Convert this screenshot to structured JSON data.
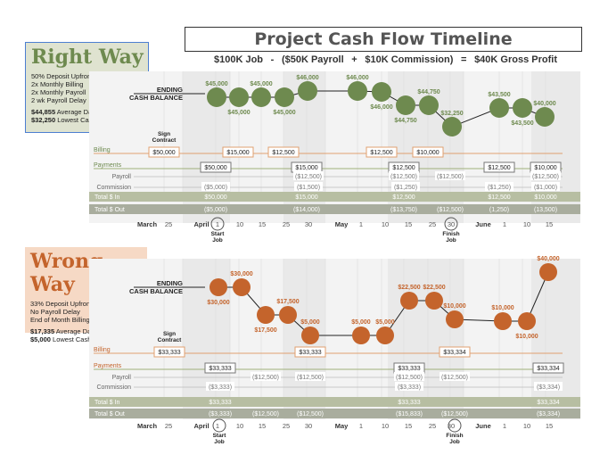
{
  "title": "Project Cash Flow Timeline",
  "subtitle": [
    "$100K Job",
    "-",
    "($50K Payroll",
    "+",
    "$10K Commission)",
    "=",
    "$40K Gross Profit"
  ],
  "colors": {
    "right": "#6e8a4f",
    "wrong": "#c4642c",
    "billing_line": "#e0a070",
    "payments_line": "#9fb07a",
    "band_in": "#b7bea2",
    "band_out": "#a9ad9e"
  },
  "timeline": {
    "month_labels": [
      {
        "text": "March",
        "day": 17
      },
      {
        "text": "25",
        "day": 25
      },
      {
        "text": "April",
        "day": 28
      },
      {
        "text": "1",
        "day": 32
      },
      {
        "text": "10",
        "day": 41
      },
      {
        "text": "15",
        "day": 46
      },
      {
        "text": "25",
        "day": 56
      },
      {
        "text": "30",
        "day": 61
      },
      {
        "text": "May",
        "day": 66
      },
      {
        "text": "1",
        "day": 62
      },
      {
        "text": "10",
        "day": 71
      },
      {
        "text": "15",
        "day": 76
      },
      {
        "text": "25",
        "day": 86
      },
      {
        "text": "30",
        "day": 91
      },
      {
        "text": "June",
        "day": 96
      },
      {
        "text": "1",
        "day": 93
      },
      {
        "text": "10",
        "day": 102
      },
      {
        "text": "15",
        "day": 107
      }
    ],
    "start_label": [
      "Start",
      "Job"
    ],
    "finish_label": [
      "Finish",
      "Job"
    ],
    "sign_label": [
      "Sign",
      "Contract"
    ]
  },
  "chart_data": [
    {
      "type": "line",
      "name": "Right Way",
      "notes": [
        "50% Deposit Upfront",
        "2x Monthly Billing",
        "2x Monthly Payroll",
        "2 wk Payroll Delay"
      ],
      "avg_balance": "$44,855",
      "avg_label": "Average Daily Cash Balance",
      "low_balance": "$32,250",
      "low_label": "Lowest Cash Balance",
      "balance_label": [
        "ENDING",
        "CASH BALANCE"
      ],
      "balance_points": [
        {
          "label": "$45,000",
          "value": 45000,
          "pos": "above"
        },
        {
          "label": "$45,000",
          "value": 45000,
          "pos": "below"
        },
        {
          "label": "$45,000",
          "value": 45000,
          "pos": "above"
        },
        {
          "label": "$45,000",
          "value": 45000,
          "pos": "below"
        },
        {
          "label": "$46,000",
          "value": 46000,
          "pos": "above"
        },
        {
          "label": "$46,000",
          "value": 46000,
          "pos": "above"
        },
        {
          "label": "$46,000",
          "value": 46000,
          "pos": "below"
        },
        {
          "label": "$44,750",
          "value": 44750,
          "pos": "below"
        },
        {
          "label": "$44,750",
          "value": 44750,
          "pos": "above"
        },
        {
          "label": "$32,250",
          "value": 32250,
          "pos": "above"
        },
        {
          "label": "$43,500",
          "value": 43500,
          "pos": "above"
        },
        {
          "label": "$43,500",
          "value": 43500,
          "pos": "below"
        },
        {
          "label": "$40,000",
          "value": 40000,
          "pos": "above"
        }
      ],
      "billing": [
        {
          "label": "$50,000"
        },
        {
          "label": "$15,000"
        },
        {
          "label": "$12,500"
        },
        {
          "label": "$12,500"
        },
        {
          "label": "$10,000"
        }
      ],
      "payments": [
        {
          "label": "$50,000"
        },
        {
          "label": "$15,000"
        },
        {
          "label": "$12,500"
        },
        {
          "label": "$12,500"
        },
        {
          "label": "$10,000"
        }
      ],
      "payroll": [
        "($12,500)",
        "($12,500)",
        "($12,500)",
        "($12,500)"
      ],
      "commission": [
        "($5,000)",
        "($1,500)",
        "($1,250)",
        "($1,250)",
        "($1,000)"
      ],
      "total_in": [
        "$50,000",
        "$15,000",
        "$12,500",
        "$12,500",
        "$10,000"
      ],
      "total_out": [
        "($5,000)",
        "($14,000)",
        "($13,750)",
        "($12,500)",
        "(1,250)",
        "(13,500)"
      ],
      "row_labels": {
        "billing": "Billing",
        "payments": "Payments",
        "payroll": "Payroll",
        "commission": "Commission",
        "total_in": "Total $ In",
        "total_out": "Total $ Out"
      }
    },
    {
      "type": "line",
      "name": "Wrong Way",
      "notes": [
        "33% Deposit Upfront",
        "No Payroll Delay",
        "End of Month Billing"
      ],
      "avg_balance": "$17,335",
      "avg_label": "Average Daily Cash Balance",
      "low_balance": "$5,000",
      "low_label": "Lowest Cash Balance",
      "balance_label": [
        "ENDING",
        "CASH BALANCE"
      ],
      "balance_points": [
        {
          "label": "$30,000",
          "value": 30000,
          "pos": "below"
        },
        {
          "label": "$30,000",
          "value": 30000,
          "pos": "above"
        },
        {
          "label": "$17,500",
          "value": 17500,
          "pos": "below"
        },
        {
          "label": "$17,500",
          "value": 17500,
          "pos": "above"
        },
        {
          "label": "$5,000",
          "value": 5000,
          "pos": "above"
        },
        {
          "label": "$5,000",
          "value": 5000,
          "pos": "above"
        },
        {
          "label": "$5,000",
          "value": 5000,
          "pos": "above"
        },
        {
          "label": "$22,500",
          "value": 22500,
          "pos": "above"
        },
        {
          "label": "$22,500",
          "value": 22500,
          "pos": "above"
        },
        {
          "label": "$10,000",
          "value": 10000,
          "pos": "above"
        },
        {
          "label": "$10,000",
          "value": 10000,
          "pos": "above"
        },
        {
          "label": "$10,000",
          "value": 10000,
          "pos": "below"
        },
        {
          "label": "$40,000",
          "value": 40000,
          "pos": "above"
        }
      ],
      "billing": [
        {
          "label": "$33,333"
        },
        {
          "label": "$33,333"
        },
        {
          "label": "$33,334"
        }
      ],
      "payments": [
        {
          "label": "$33,333"
        },
        {
          "label": "$33,333"
        },
        {
          "label": "$33,334"
        }
      ],
      "payroll": [
        "($12,500)",
        "($12,500)",
        "($12,500)",
        "($12,500)"
      ],
      "commission": [
        "($3,333)",
        "($3,333)",
        "($3,334)"
      ],
      "total_in": [
        "$33,333",
        "$33,333",
        "$33,334"
      ],
      "total_out": [
        "($3,333)",
        "($12,500)",
        "($12,500)",
        "($15,833)",
        "($12,500)",
        "($3,334)"
      ],
      "row_labels": {
        "billing": "Billing",
        "payments": "Payments",
        "payroll": "Payroll",
        "commission": "Commission",
        "total_in": "Total $ In",
        "total_out": "Total $ Out"
      }
    }
  ]
}
